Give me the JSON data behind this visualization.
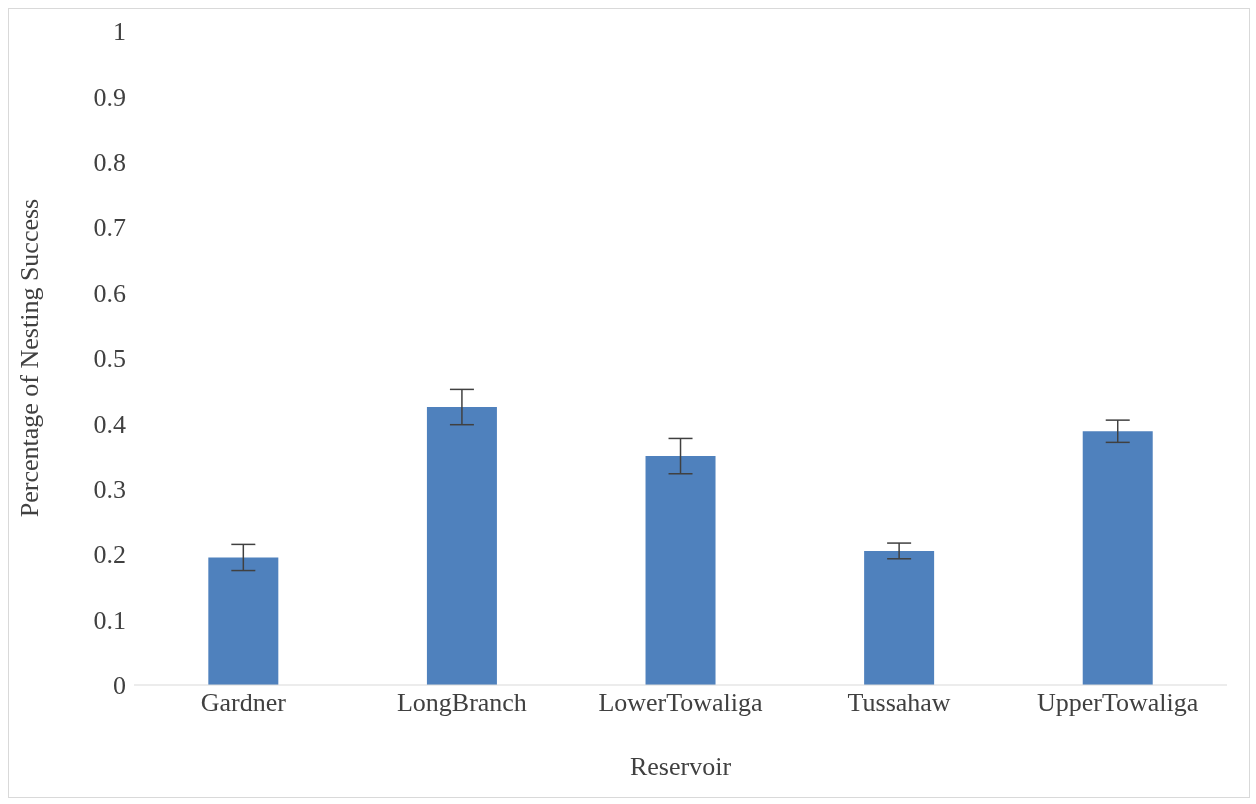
{
  "chart_data": {
    "type": "bar",
    "xlabel": "Reservoir",
    "ylabel": "Percentage of Nesting Success",
    "categories": [
      "Gardner",
      "LongBranch",
      "LowerTowaliga",
      "Tussahaw",
      "UpperTowaliga"
    ],
    "values": [
      0.195,
      0.425,
      0.35,
      0.205,
      0.388
    ],
    "errors": [
      0.02,
      0.027,
      0.027,
      0.012,
      0.017
    ],
    "color": "#4f81bd",
    "ylim": [
      0,
      1
    ],
    "yticks": [
      0,
      0.1,
      0.2,
      0.3,
      0.4,
      0.5,
      0.6,
      0.7,
      0.8,
      0.9,
      1
    ],
    "grid": false,
    "legend": false
  }
}
